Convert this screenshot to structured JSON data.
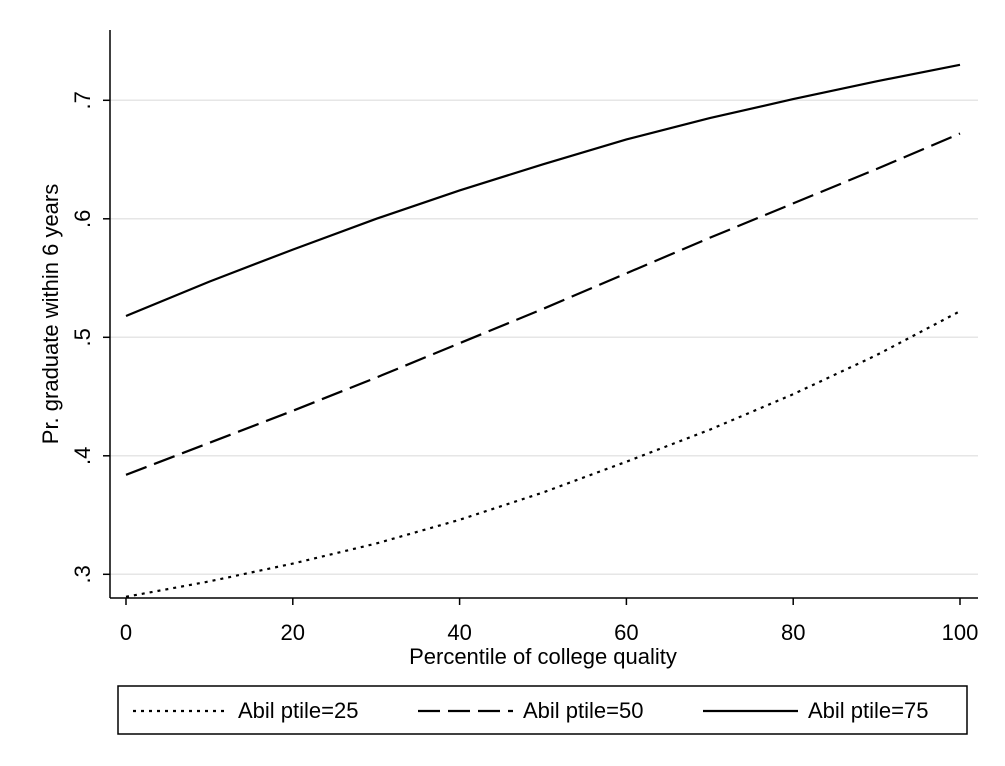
{
  "chart_data": {
    "type": "line",
    "xlabel": "Percentile of college quality",
    "ylabel": "Pr. graduate within 6 years",
    "xlim": [
      0,
      100
    ],
    "ylim": [
      0.28,
      0.745
    ],
    "xticks": [
      0,
      20,
      40,
      60,
      80,
      100
    ],
    "xtick_labels": [
      "0",
      "20",
      "40",
      "60",
      "80",
      "100"
    ],
    "yticks": [
      0.3,
      0.4,
      0.5,
      0.6,
      0.7
    ],
    "ytick_labels": [
      ".3",
      ".4",
      ".5",
      ".6",
      ".7"
    ],
    "grid": "horizontal",
    "legend_position": "bottom",
    "x": [
      0,
      10,
      20,
      30,
      40,
      50,
      60,
      70,
      80,
      90,
      100
    ],
    "series": [
      {
        "name": "Abil ptile=25",
        "style": "dotted",
        "values": [
          0.281,
          0.294,
          0.309,
          0.326,
          0.346,
          0.369,
          0.395,
          0.422,
          0.452,
          0.485,
          0.522
        ]
      },
      {
        "name": "Abil ptile=50",
        "style": "dashed",
        "values": [
          0.384,
          0.411,
          0.438,
          0.466,
          0.495,
          0.524,
          0.554,
          0.584,
          0.613,
          0.642,
          0.672
        ]
      },
      {
        "name": "Abil ptile=75",
        "style": "solid",
        "values": [
          0.518,
          0.547,
          0.574,
          0.6,
          0.624,
          0.646,
          0.667,
          0.685,
          0.701,
          0.716,
          0.73
        ]
      }
    ],
    "colors": {
      "line": "#000000",
      "grid": "#e6e6e6",
      "axis": "#000000",
      "background": "#ffffff"
    }
  }
}
